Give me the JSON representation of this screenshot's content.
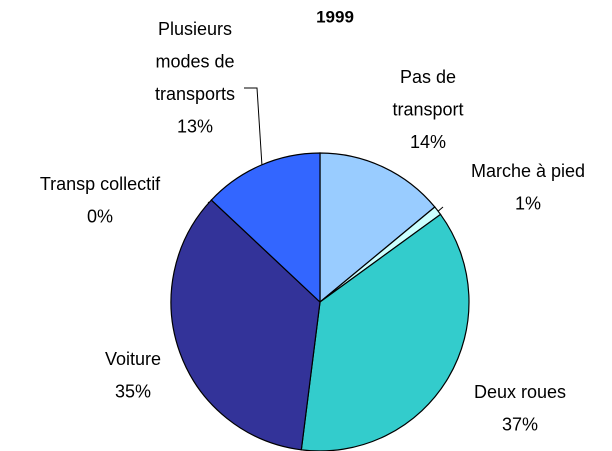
{
  "chart_data": {
    "type": "pie",
    "title": "1999",
    "categories": [
      "Pas de transport",
      "Marche à pied",
      "Deux roues",
      "Voiture",
      "Transp collectif",
      "Plusieurs modes de transports"
    ],
    "values": [
      14,
      1,
      37,
      35,
      0,
      13
    ],
    "value_labels": [
      "14%",
      "1%",
      "37%",
      "35%",
      "0%",
      "13%"
    ],
    "colors": [
      "#99ccff",
      "#ccffff",
      "#33cccc",
      "#333399",
      "#000080",
      "#3366ff"
    ]
  }
}
